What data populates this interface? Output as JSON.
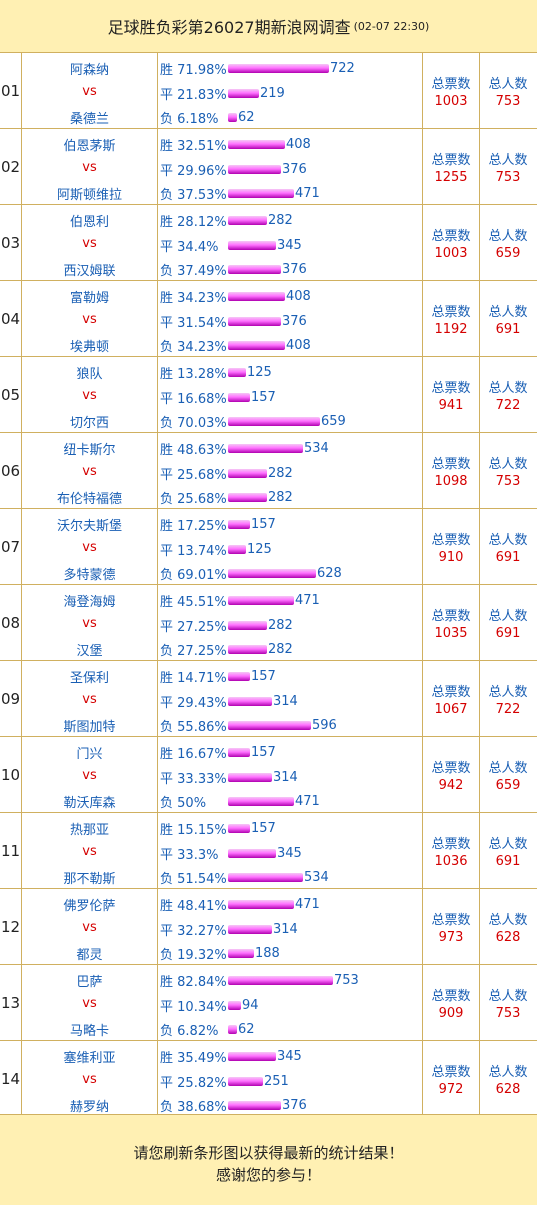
{
  "header": {
    "title": "足球胜负彩第26027期新浪网调查",
    "time": "(02-07 22:30)"
  },
  "labels": {
    "win": "胜",
    "draw": "平",
    "lose": "负",
    "vs": "vs",
    "total_votes": "总票数",
    "total_people": "总人数"
  },
  "matches": [
    {
      "no": "01",
      "home": "阿森纳",
      "away": "桑德兰",
      "win_pct": "71.98%",
      "win": 722,
      "draw_pct": "21.83%",
      "draw": 219,
      "lose_pct": "6.18%",
      "lose": 62,
      "votes": 1003,
      "people": 753
    },
    {
      "no": "02",
      "home": "伯恩茅斯",
      "away": "阿斯顿维拉",
      "win_pct": "32.51%",
      "win": 408,
      "draw_pct": "29.96%",
      "draw": 376,
      "lose_pct": "37.53%",
      "lose": 471,
      "votes": 1255,
      "people": 753
    },
    {
      "no": "03",
      "home": "伯恩利",
      "away": "西汉姆联",
      "win_pct": "28.12%",
      "win": 282,
      "draw_pct": "34.4%",
      "draw": 345,
      "lose_pct": "37.49%",
      "lose": 376,
      "votes": 1003,
      "people": 659
    },
    {
      "no": "04",
      "home": "富勒姆",
      "away": "埃弗顿",
      "win_pct": "34.23%",
      "win": 408,
      "draw_pct": "31.54%",
      "draw": 376,
      "lose_pct": "34.23%",
      "lose": 408,
      "votes": 1192,
      "people": 691
    },
    {
      "no": "05",
      "home": "狼队",
      "away": "切尔西",
      "win_pct": "13.28%",
      "win": 125,
      "draw_pct": "16.68%",
      "draw": 157,
      "lose_pct": "70.03%",
      "lose": 659,
      "votes": 941,
      "people": 722
    },
    {
      "no": "06",
      "home": "纽卡斯尔",
      "away": "布伦特福德",
      "win_pct": "48.63%",
      "win": 534,
      "draw_pct": "25.68%",
      "draw": 282,
      "lose_pct": "25.68%",
      "lose": 282,
      "votes": 1098,
      "people": 753
    },
    {
      "no": "07",
      "home": "沃尔夫斯堡",
      "away": "多特蒙德",
      "win_pct": "17.25%",
      "win": 157,
      "draw_pct": "13.74%",
      "draw": 125,
      "lose_pct": "69.01%",
      "lose": 628,
      "votes": 910,
      "people": 691
    },
    {
      "no": "08",
      "home": "海登海姆",
      "away": "汉堡",
      "win_pct": "45.51%",
      "win": 471,
      "draw_pct": "27.25%",
      "draw": 282,
      "lose_pct": "27.25%",
      "lose": 282,
      "votes": 1035,
      "people": 691
    },
    {
      "no": "09",
      "home": "圣保利",
      "away": "斯图加特",
      "win_pct": "14.71%",
      "win": 157,
      "draw_pct": "29.43%",
      "draw": 314,
      "lose_pct": "55.86%",
      "lose": 596,
      "votes": 1067,
      "people": 722
    },
    {
      "no": "10",
      "home": "门兴",
      "away": "勒沃库森",
      "win_pct": "16.67%",
      "win": 157,
      "draw_pct": "33.33%",
      "draw": 314,
      "lose_pct": "50%",
      "lose": 471,
      "votes": 942,
      "people": 659
    },
    {
      "no": "11",
      "home": "热那亚",
      "away": "那不勒斯",
      "win_pct": "15.15%",
      "win": 157,
      "draw_pct": "33.3%",
      "draw": 345,
      "lose_pct": "51.54%",
      "lose": 534,
      "votes": 1036,
      "people": 691
    },
    {
      "no": "12",
      "home": "佛罗伦萨",
      "away": "都灵",
      "win_pct": "48.41%",
      "win": 471,
      "draw_pct": "32.27%",
      "draw": 314,
      "lose_pct": "19.32%",
      "lose": 188,
      "votes": 973,
      "people": 628
    },
    {
      "no": "13",
      "home": "巴萨",
      "away": "马略卡",
      "win_pct": "82.84%",
      "win": 753,
      "draw_pct": "10.34%",
      "draw": 94,
      "lose_pct": "6.82%",
      "lose": 62,
      "votes": 909,
      "people": 753
    },
    {
      "no": "14",
      "home": "塞维利亚",
      "away": "赫罗纳",
      "win_pct": "35.49%",
      "win": 345,
      "draw_pct": "25.82%",
      "draw": 251,
      "lose_pct": "38.68%",
      "lose": 376,
      "votes": 972,
      "people": 628
    }
  ],
  "footer": {
    "line1": "请您刷新条形图以获得最新的统计结果！",
    "line2": "感谢您的参与！"
  },
  "colors": {
    "bar_top": "#f5c8f5",
    "bar_mid": "#ff70ff",
    "bar_bottom": "#b000b0",
    "team_text": "#1a5fb4",
    "vs_text": "#d40000",
    "grid_line": "#D0B060"
  }
}
